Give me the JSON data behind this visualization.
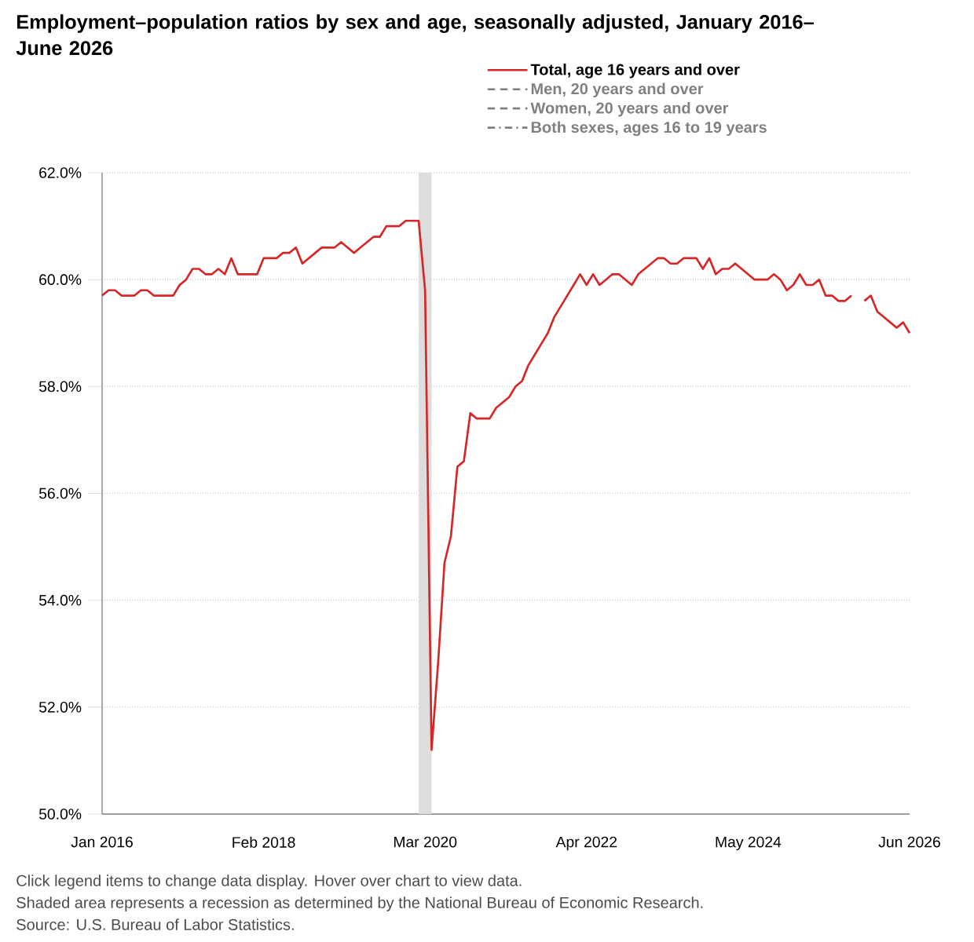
{
  "chart_data": {
    "type": "line",
    "title": "Employment–population ratios by sex and age, seasonally adjusted, January 2016–June 2026",
    "x": [
      "2016-01",
      "2016-02",
      "2016-03",
      "2016-04",
      "2016-05",
      "2016-06",
      "2016-07",
      "2016-08",
      "2016-09",
      "2016-10",
      "2016-11",
      "2016-12",
      "2017-01",
      "2017-02",
      "2017-03",
      "2017-04",
      "2017-05",
      "2017-06",
      "2017-07",
      "2017-08",
      "2017-09",
      "2017-10",
      "2017-11",
      "2017-12",
      "2018-01",
      "2018-02",
      "2018-03",
      "2018-04",
      "2018-05",
      "2018-06",
      "2018-07",
      "2018-08",
      "2018-09",
      "2018-10",
      "2018-11",
      "2018-12",
      "2019-01",
      "2019-02",
      "2019-03",
      "2019-04",
      "2019-05",
      "2019-06",
      "2019-07",
      "2019-08",
      "2019-09",
      "2019-10",
      "2019-11",
      "2019-12",
      "2020-01",
      "2020-02",
      "2020-03",
      "2020-04",
      "2020-05",
      "2020-06",
      "2020-07",
      "2020-08",
      "2020-09",
      "2020-10",
      "2020-11",
      "2020-12",
      "2021-01",
      "2021-02",
      "2021-03",
      "2021-04",
      "2021-05",
      "2021-06",
      "2021-07",
      "2021-08",
      "2021-09",
      "2021-10",
      "2021-11",
      "2021-12",
      "2022-01",
      "2022-02",
      "2022-03",
      "2022-04",
      "2022-05",
      "2022-06",
      "2022-07",
      "2022-08",
      "2022-09",
      "2022-10",
      "2022-11",
      "2022-12",
      "2023-01",
      "2023-02",
      "2023-03",
      "2023-04",
      "2023-05",
      "2023-06",
      "2023-07",
      "2023-08",
      "2023-09",
      "2023-10",
      "2023-11",
      "2023-12",
      "2024-01",
      "2024-02",
      "2024-03",
      "2024-04",
      "2024-05",
      "2024-06",
      "2024-07",
      "2024-08",
      "2024-09",
      "2024-10",
      "2024-11",
      "2024-12",
      "2025-01",
      "2025-02",
      "2025-03",
      "2025-04",
      "2025-05",
      "2025-06",
      "2025-07",
      "2025-08",
      "2025-09",
      "2025-10",
      "2025-11",
      "2025-12",
      "2026-01",
      "2026-02",
      "2026-03",
      "2026-04",
      "2026-05",
      "2026-06"
    ],
    "series": [
      {
        "name": "Total, age 16 years and over",
        "color": "#d62728",
        "line_style": "solid",
        "values": [
          59.7,
          59.8,
          59.8,
          59.7,
          59.7,
          59.7,
          59.8,
          59.8,
          59.7,
          59.7,
          59.7,
          59.7,
          59.9,
          60.0,
          60.2,
          60.2,
          60.1,
          60.1,
          60.2,
          60.1,
          60.4,
          60.1,
          60.1,
          60.1,
          60.1,
          60.4,
          60.4,
          60.4,
          60.5,
          60.5,
          60.6,
          60.3,
          60.4,
          60.5,
          60.6,
          60.6,
          60.6,
          60.7,
          60.6,
          60.5,
          60.6,
          60.7,
          60.8,
          60.8,
          61.0,
          61.0,
          61.0,
          61.1,
          61.1,
          61.1,
          59.8,
          51.2,
          52.8,
          54.7,
          55.2,
          56.5,
          56.6,
          57.5,
          57.4,
          57.4,
          57.4,
          57.6,
          57.7,
          57.8,
          58.0,
          58.1,
          58.4,
          58.6,
          58.8,
          59.0,
          59.3,
          59.5,
          59.7,
          59.9,
          60.1,
          59.9,
          60.1,
          59.9,
          60.0,
          60.1,
          60.1,
          60.0,
          59.9,
          60.1,
          60.2,
          60.3,
          60.4,
          60.4,
          60.3,
          60.3,
          60.4,
          60.4,
          60.4,
          60.2,
          60.4,
          60.1,
          60.2,
          60.2,
          60.3,
          60.2,
          60.1,
          60.0,
          60.0,
          60.0,
          60.1,
          60.0,
          59.8,
          59.9,
          60.1,
          59.9,
          59.9,
          60.0,
          59.7,
          59.7,
          59.6,
          59.6,
          59.7,
          null,
          59.6,
          59.7,
          59.4,
          59.3,
          59.2,
          59.1,
          59.2,
          59.0
        ]
      },
      {
        "name": "Men, 20 years and over",
        "color": "#808080",
        "line_style": "dashed",
        "values": [
          null,
          null,
          null,
          null,
          null,
          null,
          null,
          null,
          null,
          null,
          null,
          null,
          null,
          null,
          null,
          null,
          null,
          null,
          null,
          null,
          null,
          null,
          null,
          null,
          null,
          null,
          null,
          null,
          null,
          null,
          null,
          null,
          null,
          null,
          null,
          null,
          null,
          null,
          null,
          null,
          null,
          null,
          null,
          null,
          null,
          null,
          null,
          null,
          null,
          null,
          null,
          null,
          null,
          null,
          null,
          null,
          null,
          null,
          null,
          null,
          null,
          null,
          null,
          null,
          null,
          null,
          null,
          null,
          null,
          null,
          null,
          null,
          null,
          null,
          null,
          null,
          null,
          null,
          null,
          null,
          null,
          null,
          null,
          null,
          null,
          null,
          null,
          null,
          null,
          null,
          null,
          null,
          null,
          null,
          null,
          null,
          null,
          null,
          null,
          null,
          null,
          null,
          null,
          null,
          null,
          null,
          null,
          null,
          null,
          null,
          null,
          null,
          null,
          null,
          null,
          null,
          null,
          null,
          null,
          null,
          null,
          null,
          null,
          null,
          null,
          null
        ]
      },
      {
        "name": "Women, 20 years and over",
        "color": "#808080",
        "line_style": "dashed",
        "values": [
          null,
          null,
          null,
          null,
          null,
          null,
          null,
          null,
          null,
          null,
          null,
          null,
          null,
          null,
          null,
          null,
          null,
          null,
          null,
          null,
          null,
          null,
          null,
          null,
          null,
          null,
          null,
          null,
          null,
          null,
          null,
          null,
          null,
          null,
          null,
          null,
          null,
          null,
          null,
          null,
          null,
          null,
          null,
          null,
          null,
          null,
          null,
          null,
          null,
          null,
          null,
          null,
          null,
          null,
          null,
          null,
          null,
          null,
          null,
          null,
          null,
          null,
          null,
          null,
          null,
          null,
          null,
          null,
          null,
          null,
          null,
          null,
          null,
          null,
          null,
          null,
          null,
          null,
          null,
          null,
          null,
          null,
          null,
          null,
          null,
          null,
          null,
          null,
          null,
          null,
          null,
          null,
          null,
          null,
          null,
          null,
          null,
          null,
          null,
          null,
          null,
          null,
          null,
          null,
          null,
          null,
          null,
          null,
          null,
          null,
          null,
          null,
          null,
          null,
          null,
          null,
          null,
          null,
          null,
          null,
          null,
          null,
          null,
          null,
          null,
          null
        ]
      },
      {
        "name": "Both sexes, ages 16 to 19 years",
        "color": "#808080",
        "line_style": "dashdot",
        "values": [
          null,
          null,
          null,
          null,
          null,
          null,
          null,
          null,
          null,
          null,
          null,
          null,
          null,
          null,
          null,
          null,
          null,
          null,
          null,
          null,
          null,
          null,
          null,
          null,
          null,
          null,
          null,
          null,
          null,
          null,
          null,
          null,
          null,
          null,
          null,
          null,
          null,
          null,
          null,
          null,
          null,
          null,
          null,
          null,
          null,
          null,
          null,
          null,
          null,
          null,
          null,
          null,
          null,
          null,
          null,
          null,
          null,
          null,
          null,
          null,
          null,
          null,
          null,
          null,
          null,
          null,
          null,
          null,
          null,
          null,
          null,
          null,
          null,
          null,
          null,
          null,
          null,
          null,
          null,
          null,
          null,
          null,
          null,
          null,
          null,
          null,
          null,
          null,
          null,
          null,
          null,
          null,
          null,
          null,
          null,
          null,
          null,
          null,
          null,
          null,
          null,
          null,
          null,
          null,
          null,
          null,
          null,
          null,
          null,
          null,
          null,
          null,
          null,
          null,
          null,
          null,
          null,
          null,
          null,
          null,
          null,
          null,
          null,
          null,
          null,
          null
        ]
      }
    ],
    "xlim": [
      "2016-01",
      "2026-06"
    ],
    "xticks": [
      {
        "value": "2016-01",
        "label": "Jan 2016"
      },
      {
        "value": "2018-02",
        "label": "Feb 2018"
      },
      {
        "value": "2020-03",
        "label": "Mar 2020"
      },
      {
        "value": "2022-04",
        "label": "Apr 2022"
      },
      {
        "value": "2024-05",
        "label": "May 2024"
      },
      {
        "value": "2026-06",
        "label": "Jun 2026"
      }
    ],
    "ylim": [
      50,
      62
    ],
    "yticks": [
      {
        "value": 50,
        "label": "50.0%"
      },
      {
        "value": 52,
        "label": "52.0%"
      },
      {
        "value": 54,
        "label": "54.0%"
      },
      {
        "value": 56,
        "label": "56.0%"
      },
      {
        "value": 58,
        "label": "58.0%"
      },
      {
        "value": 60,
        "label": "60.0%"
      },
      {
        "value": 62,
        "label": "62.0%"
      }
    ],
    "bands": [
      {
        "axis": "x",
        "from": "2020-02",
        "to": "2020-04",
        "color": "#dddddd"
      }
    ],
    "grid": "y",
    "legend": "top",
    "annotations": [
      "Click legend items to change data display. Hover over chart to view data.",
      "Shaded area represents a recession as determined by the National Bureau of Economic Research.",
      "Source: U.S. Bureau of Labor Statistics."
    ]
  }
}
